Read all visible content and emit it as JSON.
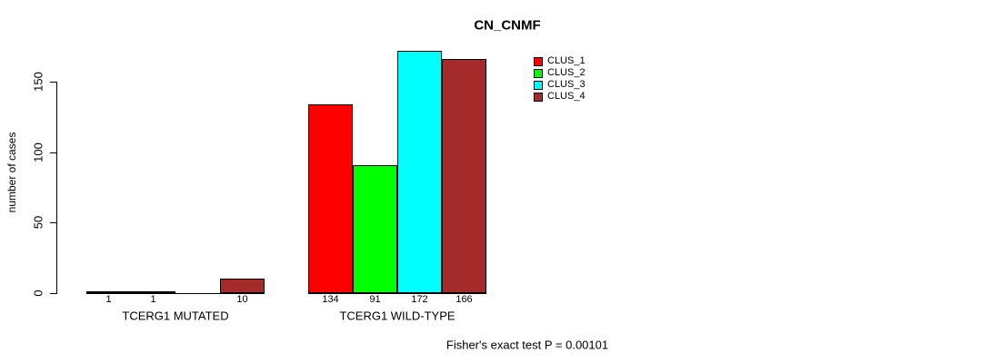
{
  "title": "CN_CNMF",
  "y_axis": {
    "label": "number of cases",
    "ticks": [
      0,
      50,
      100,
      150
    ]
  },
  "footer": "Fisher's exact test P = 0.00101",
  "legend": {
    "items": [
      {
        "label": "CLUS_1",
        "color": "#ff0000"
      },
      {
        "label": "CLUS_2",
        "color": "#00ff00"
      },
      {
        "label": "CLUS_3",
        "color": "#00ffff"
      },
      {
        "label": "CLUS_4",
        "color": "#a52a2a"
      }
    ]
  },
  "chart_data": {
    "type": "bar",
    "title": "CN_CNMF",
    "ylabel": "number of cases",
    "ylim": [
      0,
      175
    ],
    "yticks": [
      0,
      50,
      100,
      150
    ],
    "grid": false,
    "legend_position": "top-right",
    "categories": [
      "TCERG1 MUTATED",
      "TCERG1 WILD-TYPE"
    ],
    "series": [
      {
        "name": "CLUS_1",
        "color": "#ff0000",
        "values": [
          1,
          134
        ]
      },
      {
        "name": "CLUS_2",
        "color": "#00ff00",
        "values": [
          1,
          91
        ]
      },
      {
        "name": "CLUS_3",
        "color": "#00ffff",
        "values": [
          0,
          172
        ]
      },
      {
        "name": "CLUS_4",
        "color": "#a52a2a",
        "values": [
          10,
          166
        ]
      }
    ],
    "bar_value_labels": [
      [
        "1",
        "1",
        "",
        "10"
      ],
      [
        "134",
        "91",
        "172",
        "166"
      ]
    ],
    "annotation": "Fisher's exact test P = 0.00101"
  }
}
